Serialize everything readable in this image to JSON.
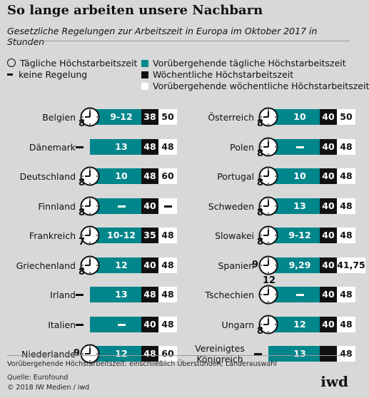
{
  "title": "So lange arbeiten unsere Nachbarn",
  "subtitle": "Gesetzliche Regelungen zur Arbeitszeit in Europa im Oktober 2017 in Stunden",
  "legend": {
    "daily_max": "Tägliche Höchstarbeitszeit",
    "no_rule": "keine Regelung",
    "temp_daily_max": "Vorübergehende tägliche Höchstarbeitszeit",
    "weekly_max": "Wöchentliche Höchstarbeitszeit",
    "temp_weekly_max": "Vorübergehende wöchentliche Höchstarbeitszeit"
  },
  "colors": {
    "teal": "#00868b",
    "black": "#111111",
    "white": "#ffffff",
    "background": "#d8d8d8"
  },
  "footnote": "Vorübergehende Höchstarbeitszeit: einschließlich Überstunden; Länderauswahl",
  "source": "Quelle: Eurofound",
  "copyright": "© 2018 IW Medien / iwd",
  "logo": "iwd",
  "chart_data": {
    "type": "table",
    "columns": [
      "Tägliche Höchstarbeitszeit",
      "Vorübergehende tägliche Höchstarbeitszeit",
      "Wöchentliche Höchstarbeitszeit",
      "Vorübergehende wöchentliche Höchstarbeitszeit"
    ],
    "rows": [
      {
        "country": "Belgien",
        "daily": "8",
        "temp_daily": "9-12",
        "weekly": "38",
        "temp_weekly": "50"
      },
      {
        "country": "Dänemark",
        "daily": null,
        "temp_daily": "13",
        "weekly": "48",
        "temp_weekly": "48"
      },
      {
        "country": "Deutschland",
        "daily": "8",
        "temp_daily": "10",
        "weekly": "48",
        "temp_weekly": "60"
      },
      {
        "country": "Finnland",
        "daily": "8",
        "temp_daily": null,
        "weekly": "40",
        "temp_weekly": null
      },
      {
        "country": "Frankreich",
        "daily": "7",
        "temp_daily": "10-12",
        "weekly": "35",
        "temp_weekly": "48"
      },
      {
        "country": "Griechenland",
        "daily": "8",
        "temp_daily": "12",
        "weekly": "40",
        "temp_weekly": "48"
      },
      {
        "country": "Irland",
        "daily": null,
        "temp_daily": "13",
        "weekly": "48",
        "temp_weekly": "48"
      },
      {
        "country": "Italien",
        "daily": null,
        "temp_daily": null,
        "weekly": "40",
        "temp_weekly": "48"
      },
      {
        "country": "Niederlande",
        "daily": "9",
        "temp_daily": "12",
        "weekly": "48",
        "temp_weekly": "60"
      },
      {
        "country": "Österreich",
        "daily": "8",
        "temp_daily": "10",
        "weekly": "40",
        "temp_weekly": "50"
      },
      {
        "country": "Polen",
        "daily": "8",
        "temp_daily": null,
        "weekly": "40",
        "temp_weekly": "48"
      },
      {
        "country": "Portugal",
        "daily": "8",
        "temp_daily": "10",
        "weekly": "40",
        "temp_weekly": "48"
      },
      {
        "country": "Schweden",
        "daily": "8",
        "temp_daily": "13",
        "weekly": "40",
        "temp_weekly": "48"
      },
      {
        "country": "Slowakei",
        "daily": "8",
        "temp_daily": "9-12",
        "weekly": "40",
        "temp_weekly": "48"
      },
      {
        "country": "Spanien",
        "daily": "9",
        "temp_daily": "9,29",
        "weekly": "40",
        "temp_weekly": "41,75"
      },
      {
        "country": "Tschechien",
        "daily": "12",
        "temp_daily": null,
        "weekly": "40",
        "temp_weekly": "48"
      },
      {
        "country": "Ungarn",
        "daily": "8",
        "temp_daily": "12",
        "weekly": "40",
        "temp_weekly": "48"
      },
      {
        "country": "Vereinigtes Königreich",
        "daily": null,
        "temp_daily": "13",
        "weekly": null,
        "temp_weekly": "48"
      }
    ]
  }
}
